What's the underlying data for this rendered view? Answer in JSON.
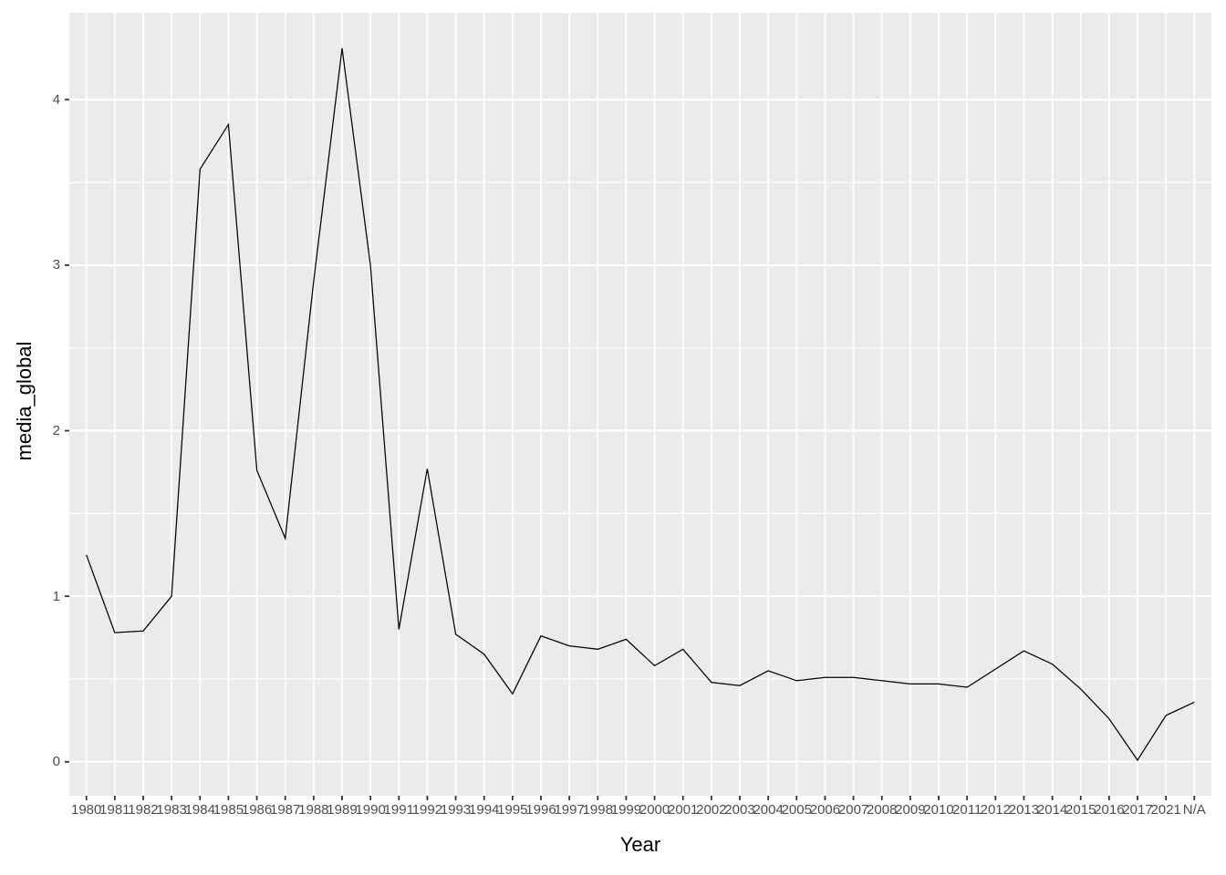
{
  "chart_data": {
    "type": "line",
    "title": "",
    "xlabel": "Year",
    "ylabel": "media_global",
    "categories": [
      "1980",
      "1981",
      "1982",
      "1983",
      "1984",
      "1985",
      "1986",
      "1987",
      "1988",
      "1989",
      "1990",
      "1991",
      "1992",
      "1993",
      "1994",
      "1995",
      "1996",
      "1997",
      "1998",
      "1999",
      "2000",
      "2001",
      "2002",
      "2003",
      "2004",
      "2005",
      "2006",
      "2007",
      "2008",
      "2009",
      "2010",
      "2011",
      "2012",
      "2013",
      "2014",
      "2015",
      "2016",
      "2017",
      "2021",
      "N/A"
    ],
    "values": [
      1.25,
      0.78,
      0.79,
      1.0,
      3.58,
      3.85,
      1.76,
      1.35,
      2.9,
      4.31,
      3.0,
      0.8,
      1.77,
      0.77,
      0.65,
      0.41,
      0.76,
      0.7,
      0.68,
      0.74,
      0.58,
      0.68,
      0.48,
      0.46,
      0.55,
      0.49,
      0.51,
      0.51,
      0.49,
      0.47,
      0.47,
      0.45,
      0.56,
      0.67,
      0.59,
      0.44,
      0.26,
      0.01,
      0.28,
      0.36
    ],
    "yticks": [
      0,
      1,
      2,
      3,
      4
    ],
    "yminor": [
      0.5,
      1.5,
      2.5,
      3.5
    ],
    "ylim": [
      -0.205,
      4.525
    ],
    "grid": "horizontal major+minor, vertical major at every category",
    "legend_position": "none"
  },
  "colors": {
    "canvas_bg": "#FFFFFF",
    "panel_bg": "#EBEBEB",
    "grid": "#FFFFFF",
    "line": "#000000",
    "tick_mark": "#333333",
    "tick_label": "#4D4D4D",
    "axis_title": "#000000"
  }
}
